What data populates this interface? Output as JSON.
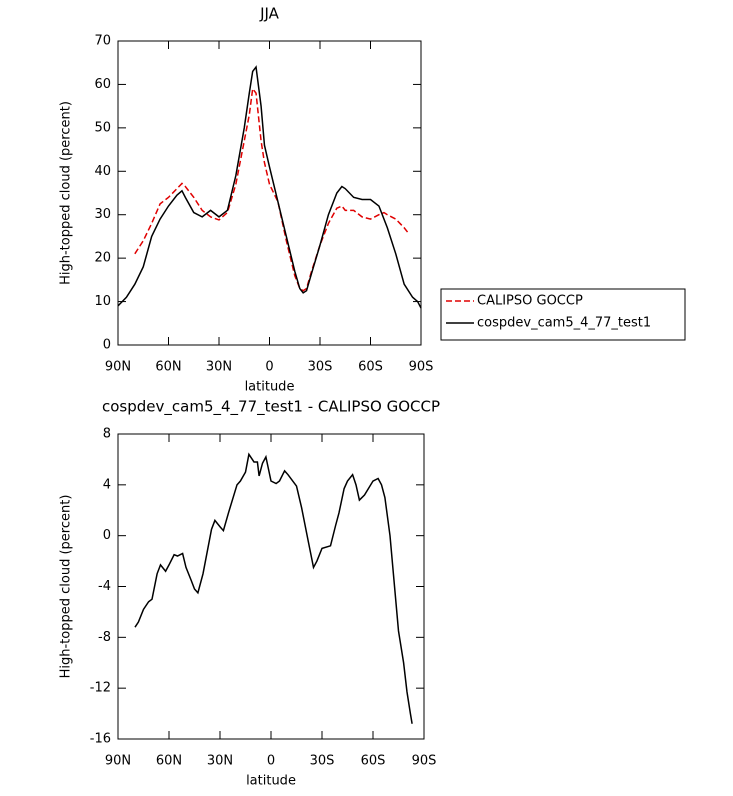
{
  "chart_data": [
    {
      "type": "line",
      "title": "JJA",
      "xlabel": "latitude",
      "ylabel": "High-topped cloud (percent)",
      "xlim": [
        90,
        -90
      ],
      "ylim": [
        0,
        70
      ],
      "xticks": [
        {
          "value": 90,
          "label": "90N"
        },
        {
          "value": 60,
          "label": "60N"
        },
        {
          "value": 30,
          "label": "30N"
        },
        0,
        {
          "value": -30,
          "label": "30S"
        },
        {
          "value": -60,
          "label": "60S"
        },
        {
          "value": -90,
          "label": "90S"
        }
      ],
      "yticks": [
        0,
        10,
        20,
        30,
        40,
        50,
        60,
        70
      ],
      "legend": "right",
      "series": [
        {
          "name": "CALIPSO GOCCP",
          "color": "#e00000",
          "style": "dashed",
          "x": [
            80,
            75,
            70,
            65,
            60,
            55,
            52,
            50,
            45,
            40,
            35,
            30,
            25,
            20,
            15,
            12,
            10,
            8,
            5,
            3,
            0,
            -5,
            -10,
            -15,
            -18,
            -20,
            -22,
            -25,
            -30,
            -35,
            -40,
            -43,
            -45,
            -50,
            -55,
            -60,
            -65,
            -68,
            -70,
            -75,
            -80,
            -82
          ],
          "values": [
            21,
            24,
            28,
            32.5,
            34,
            36,
            37.2,
            36.5,
            34,
            31,
            29.5,
            28.8,
            30.5,
            37,
            47,
            53,
            59,
            58,
            47,
            42,
            37,
            33,
            24,
            16,
            13,
            12.5,
            13,
            17,
            23,
            28,
            31.5,
            32,
            31,
            31,
            29.5,
            29,
            30,
            30.5,
            30,
            29,
            27,
            26
          ]
        },
        {
          "name": "cospdev_cam5_4_77_test1",
          "color": "#000000",
          "style": "solid",
          "x": [
            90,
            85,
            80,
            75,
            70,
            65,
            60,
            55,
            52,
            50,
            45,
            40,
            35,
            30,
            25,
            20,
            15,
            12,
            10,
            8,
            5,
            3,
            0,
            -5,
            -10,
            -15,
            -18,
            -20,
            -22,
            -25,
            -30,
            -35,
            -40,
            -43,
            -45,
            -50,
            -55,
            -60,
            -65,
            -70,
            -75,
            -80,
            -85,
            -88,
            -90
          ],
          "values": [
            9,
            11,
            14,
            18,
            25,
            29,
            32,
            34.5,
            35.5,
            34,
            30.5,
            29.5,
            31,
            29.5,
            31,
            39,
            50,
            58,
            63,
            64,
            55,
            46,
            41,
            33,
            25,
            17,
            13,
            12,
            12.5,
            16.5,
            23,
            30,
            35,
            36.5,
            36,
            34,
            33.5,
            33.5,
            32,
            27,
            21,
            14,
            11,
            10,
            8.5
          ]
        }
      ]
    },
    {
      "type": "line",
      "title": "cospdev_cam5_4_77_test1 - CALIPSO GOCCP",
      "xlabel": "latitude",
      "ylabel": "High-topped cloud (percent)",
      "xlim": [
        90,
        -90
      ],
      "ylim": [
        -16,
        8
      ],
      "xticks": [
        {
          "value": 90,
          "label": "90N"
        },
        {
          "value": 60,
          "label": "60N"
        },
        {
          "value": 30,
          "label": "30N"
        },
        0,
        {
          "value": -30,
          "label": "30S"
        },
        {
          "value": -60,
          "label": "60S"
        },
        {
          "value": -90,
          "label": "90S"
        }
      ],
      "yticks": [
        -16,
        -12,
        -8,
        -4,
        0,
        4,
        8
      ],
      "color": "#000000",
      "x": [
        80,
        78,
        75,
        72,
        70,
        67,
        65,
        62,
        60,
        57,
        55,
        52,
        50,
        47,
        45,
        43,
        40,
        35,
        33,
        30,
        28,
        25,
        20,
        18,
        15,
        13,
        10,
        8,
        7,
        5,
        3,
        0,
        -3,
        -5,
        -8,
        -10,
        -15,
        -18,
        -22,
        -25,
        -27,
        -30,
        -35,
        -38,
        -40,
        -43,
        -45,
        -48,
        -50,
        -52,
        -55,
        -60,
        -63,
        -65,
        -67,
        -70,
        -72,
        -75,
        -78,
        -80,
        -82,
        -83
      ],
      "values": [
        -7.2,
        -6.8,
        -5.8,
        -5.2,
        -5,
        -3,
        -2.3,
        -2.8,
        -2.3,
        -1.5,
        -1.6,
        -1.4,
        -2.5,
        -3.5,
        -4.2,
        -4.5,
        -3,
        0.5,
        1.2,
        0.7,
        0.4,
        1.8,
        4,
        4.3,
        5,
        6.4,
        5.8,
        5.8,
        4.7,
        5.7,
        6.2,
        4.3,
        4.1,
        4.3,
        5.1,
        4.8,
        3.9,
        2.2,
        -0.5,
        -2.5,
        -2,
        -1,
        -0.8,
        0.8,
        1.8,
        3.7,
        4.3,
        4.8,
        4,
        2.8,
        3.2,
        4.3,
        4.5,
        4,
        3,
        0,
        -3,
        -7.5,
        -10,
        -12.3,
        -14,
        -14.8
      ]
    }
  ]
}
